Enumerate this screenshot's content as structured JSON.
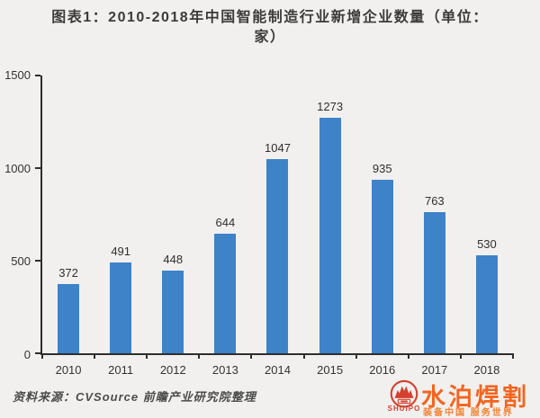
{
  "page": {
    "title_line1": "图表1：2010-2018年中国智能制造行业新增企业数量（单位：",
    "title_line2": "家）",
    "source": "资料来源：CVSource  前瞻产业研究院整理"
  },
  "chart_data": {
    "type": "bar",
    "title": "图表1：2010-2018年中国智能制造行业新增企业数量（单位：家）",
    "categories": [
      "2010",
      "2011",
      "2012",
      "2013",
      "2014",
      "2015",
      "2016",
      "2017",
      "2018"
    ],
    "values": [
      372,
      491,
      448,
      644,
      1047,
      1273,
      935,
      763,
      530
    ],
    "xlabel": "",
    "ylabel": "",
    "ylim": [
      0,
      1500
    ],
    "yticks": [
      0,
      500,
      1000,
      1500
    ],
    "grid": false,
    "legend": false,
    "data_labels": true
  },
  "colors": {
    "bar": "#3e82c8",
    "background": "#f2f0ee",
    "axis": "#2e2e2e",
    "logo_red": "#d6402e",
    "logo_orange": "#f4641f"
  },
  "watermark": {
    "badge": "SHUIPO",
    "brand": "水泊焊割",
    "slogan": "装备中国  服务世界"
  }
}
